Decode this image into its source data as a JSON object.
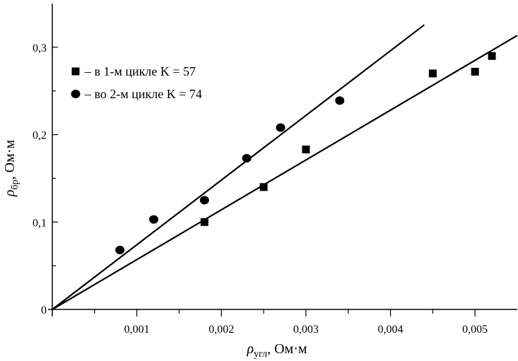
{
  "chart_data": {
    "type": "scatter",
    "x_label": {
      "main": "ρ",
      "sub": "угл",
      "unit": ", Ом·м"
    },
    "y_label": {
      "main": "ρ",
      "sub": "бр",
      "unit": ", Ом·м"
    },
    "xlim": [
      0,
      0.0055
    ],
    "ylim": [
      0,
      0.35
    ],
    "x_ticks": [
      {
        "value": 0.001,
        "label": "0,001"
      },
      {
        "value": 0.002,
        "label": "0,002"
      },
      {
        "value": 0.003,
        "label": "0,003"
      },
      {
        "value": 0.004,
        "label": "0,004"
      },
      {
        "value": 0.005,
        "label": "0,005"
      }
    ],
    "y_ticks": [
      {
        "value": 0,
        "label": "0"
      },
      {
        "value": 0.1,
        "label": "0,1"
      },
      {
        "value": 0.2,
        "label": "0,2"
      },
      {
        "value": 0.3,
        "label": "0,3"
      }
    ],
    "legend_position": "upper-left",
    "grid": false,
    "series": [
      {
        "name": "– в 1-м цикле K = 57",
        "marker": "square",
        "slope": 57,
        "fit_x": [
          0,
          0.0055
        ],
        "points": [
          [
            0.0018,
            0.1
          ],
          [
            0.0025,
            0.14
          ],
          [
            0.003,
            0.183
          ],
          [
            0.0045,
            0.27
          ],
          [
            0.005,
            0.272
          ],
          [
            0.0052,
            0.29
          ]
        ]
      },
      {
        "name": "– во 2-м цикле K = 74",
        "marker": "circle",
        "slope": 74,
        "fit_x": [
          0,
          0.0044
        ],
        "points": [
          [
            0.0008,
            0.068
          ],
          [
            0.0012,
            0.103
          ],
          [
            0.0018,
            0.125
          ],
          [
            0.0023,
            0.173
          ],
          [
            0.0027,
            0.208
          ],
          [
            0.0034,
            0.239
          ]
        ]
      }
    ]
  }
}
